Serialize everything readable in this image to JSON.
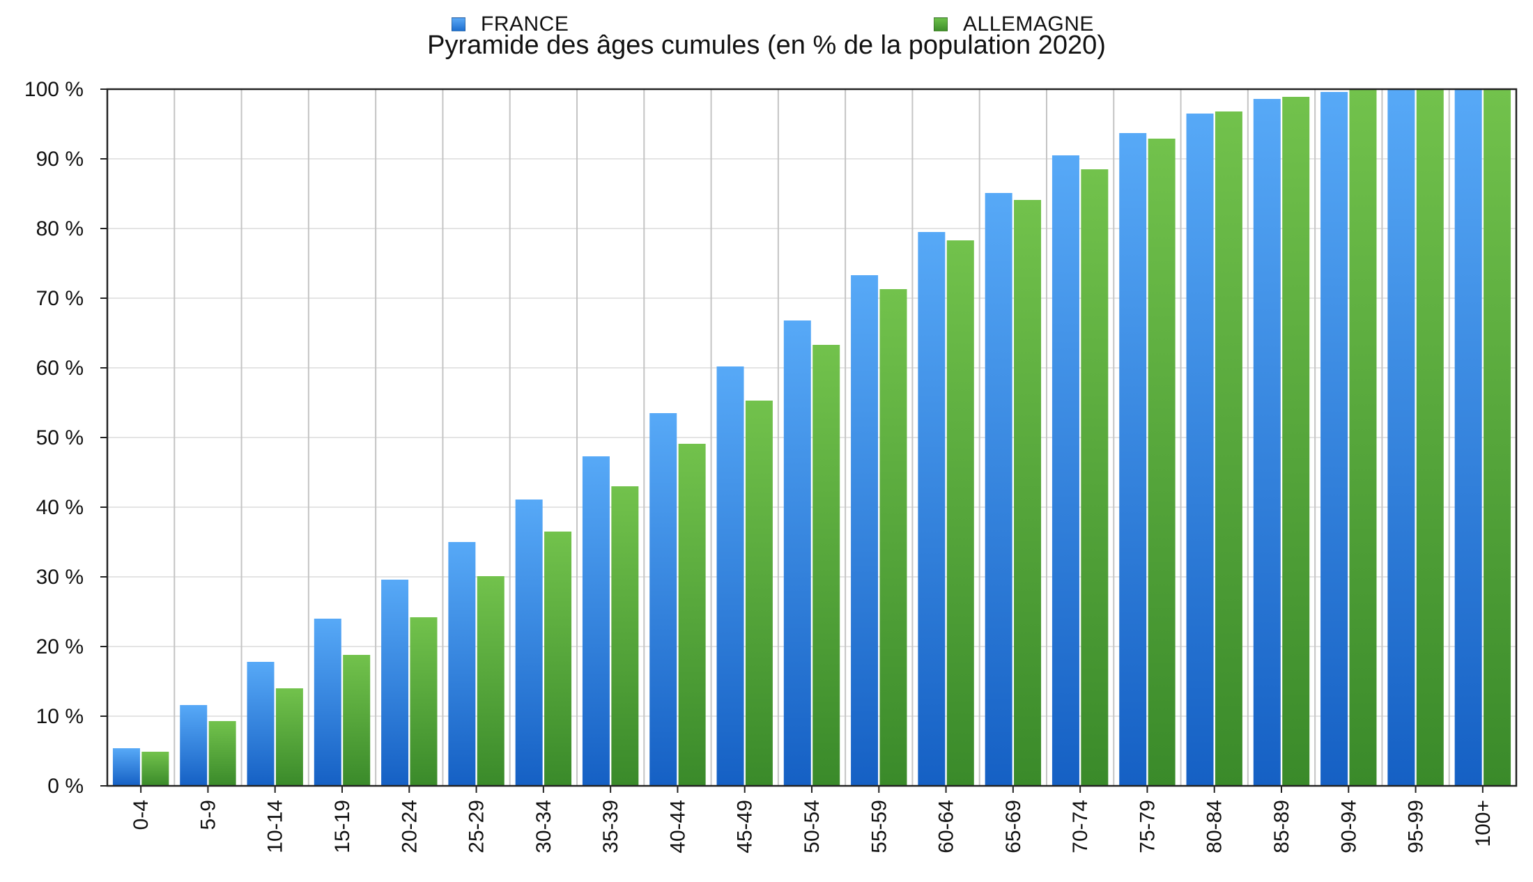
{
  "chart_data": {
    "type": "bar",
    "title": "Pyramide des âges cumules (en % de la population 2020)",
    "categories": [
      "0-4",
      "5-9",
      "10-14",
      "15-19",
      "20-24",
      "25-29",
      "30-34",
      "35-39",
      "40-44",
      "45-49",
      "50-54",
      "55-59",
      "60-64",
      "65-69",
      "70-74",
      "75-79",
      "80-84",
      "85-89",
      "90-94",
      "95-99",
      "100+"
    ],
    "series": [
      {
        "name": "FRANCE",
        "color": "#3f8fe0",
        "values": [
          5.4,
          11.6,
          17.8,
          24.0,
          29.6,
          35.0,
          41.1,
          47.3,
          53.5,
          60.2,
          66.8,
          73.3,
          79.5,
          85.1,
          90.5,
          93.7,
          96.5,
          98.6,
          99.6,
          100,
          100
        ]
      },
      {
        "name": "ALLEMAGNE",
        "color": "#5aac3c",
        "values": [
          4.9,
          9.3,
          14.0,
          18.8,
          24.2,
          30.1,
          36.5,
          43.0,
          49.1,
          55.3,
          63.3,
          71.3,
          78.3,
          84.1,
          88.5,
          92.9,
          96.8,
          98.9,
          100,
          100,
          100
        ]
      }
    ],
    "ylim": [
      0,
      100
    ],
    "yticks": [
      "0 %",
      "10 %",
      "20 %",
      "30 %",
      "40 %",
      "50 %",
      "60 %",
      "70 %",
      "80 %",
      "90 %",
      "100 %"
    ],
    "grid": true,
    "legend_position": "top"
  }
}
